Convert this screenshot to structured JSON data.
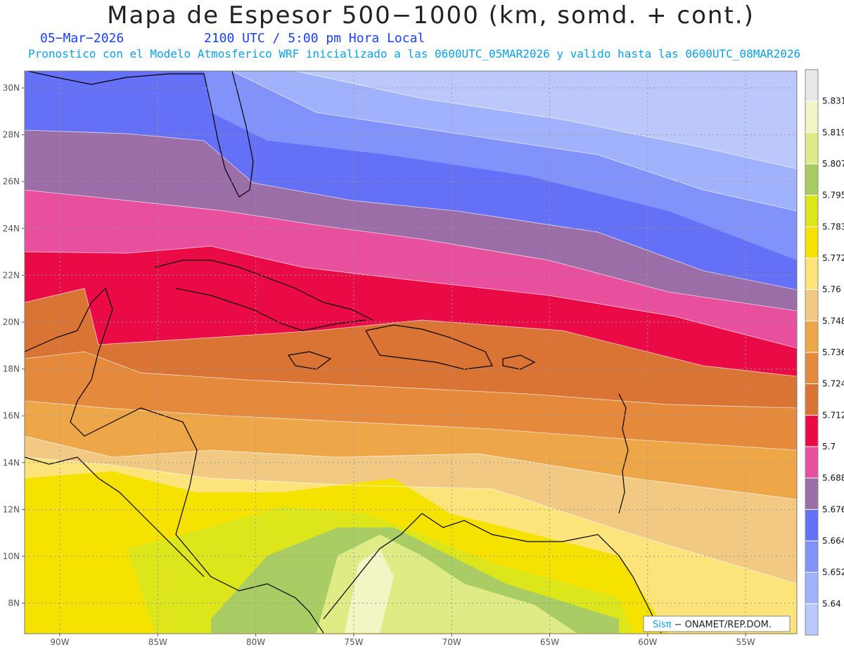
{
  "header": {
    "title": "Mapa de Espesor 500−1000 (km, somd. + cont.)",
    "date": "05−Mar−2026",
    "time": "2100 UTC / 5:00 pm Hora Local",
    "forecast_info": "Pronostico con el Modelo Atmosferico WRF inicializado a las 0600UTC_05MAR2026 y valido hasta las  0600UTC_08MAR2026"
  },
  "axes": {
    "lat_labels": [
      "30N",
      "28N",
      "26N",
      "24N",
      "22N",
      "20N",
      "18N",
      "16N",
      "14N",
      "12N",
      "10N",
      "8N"
    ],
    "lon_labels": [
      "90W",
      "85W",
      "80W",
      "75W",
      "70W",
      "65W",
      "60W",
      "55W"
    ]
  },
  "colorbar": {
    "levels": [
      "5.64",
      "5.652",
      "5.664",
      "5.676",
      "5.688",
      "5.7",
      "5.712",
      "5.724",
      "5.736",
      "5.748",
      "5.76",
      "5.772",
      "5.783",
      "5.795",
      "5.807",
      "5.819",
      "5.831"
    ],
    "colors": [
      "#bcc8fb",
      "#9fb2fb",
      "#8193fb",
      "#6470f6",
      "#9c6ea8",
      "#e8509e",
      "#ea0a46",
      "#d97435",
      "#e58a3c",
      "#eda648",
      "#f2c982",
      "#fde47a",
      "#f5e200",
      "#dde61a",
      "#a9cc64",
      "#dfeb84",
      "#f1f6c4",
      "#e8e8e8"
    ]
  },
  "credit": {
    "brand": "Sisπ",
    "org": " − ONAMET/REP.DOM."
  }
}
